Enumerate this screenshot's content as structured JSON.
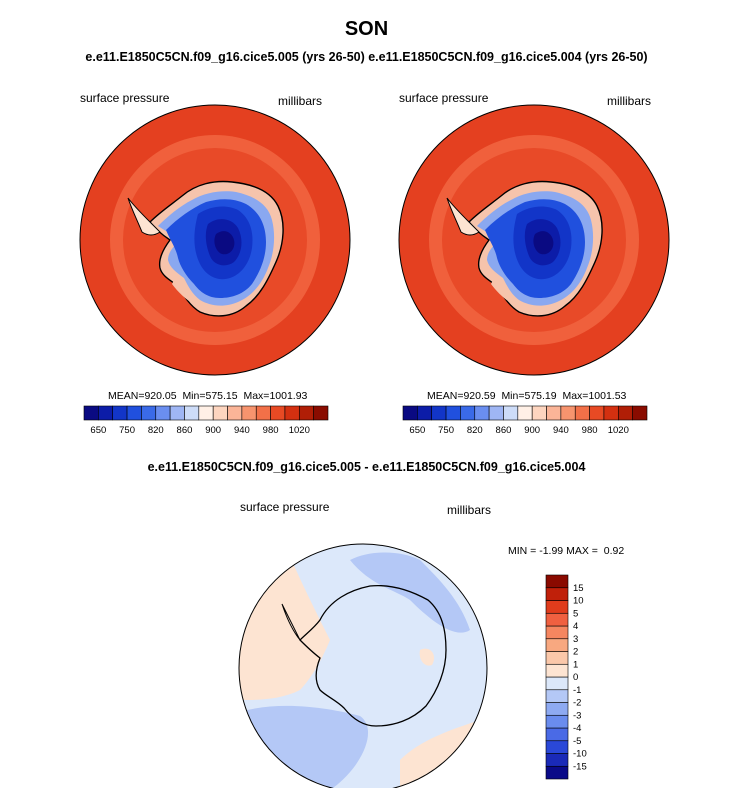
{
  "title": "SON",
  "subtitle_top": "e.e11.E1850C5CN.f09_g16.cice5.005 (yrs 26-50) e.e11.E1850C5CN.f09_g16.cice5.004 (yrs 26-50)",
  "diff_title": "e.e11.E1850C5CN.f09_g16.cice5.005 - e.e11.E1850C5CN.f09_g16.cice5.004",
  "panels": [
    {
      "variable": "surface pressure",
      "units": "millibars",
      "mean": "920.05",
      "min": "575.15",
      "max": "1001.93"
    },
    {
      "variable": "surface pressure",
      "units": "millibars",
      "mean": "920.59",
      "min": "575.19",
      "max": "1001.53"
    }
  ],
  "diff_panel": {
    "variable": "surface pressure",
    "units": "millibars",
    "min": "-1.99",
    "max": "0.92"
  },
  "labels": {
    "mean": "MEAN=",
    "min": "Min=",
    "max": "Max=",
    "dmin": "MIN =",
    "dmax": "MAX ="
  },
  "colorbar_main": {
    "colors": [
      "#0a0a82",
      "#0c1ca8",
      "#1235c8",
      "#2050de",
      "#3a6ae8",
      "#6a8ef0",
      "#9fb6f4",
      "#cddcf8",
      "#fff0e6",
      "#fdd5bf",
      "#fbb598",
      "#f7946e",
      "#f27048",
      "#e84a24",
      "#d43010",
      "#b01e06",
      "#8a0c00"
    ],
    "ticks": [
      "650",
      "750",
      "820",
      "860",
      "900",
      "940",
      "980",
      "1020"
    ]
  },
  "colorbar_diff": {
    "colors": [
      "#0a0a88",
      "#1a2ab8",
      "#2a48d8",
      "#4a6ae6",
      "#6a8cee",
      "#8eaaf2",
      "#b4c8f6",
      "#dce8fa",
      "#fde4d2",
      "#fbc8aa",
      "#f8a880",
      "#f58660",
      "#f06040",
      "#e03c1c",
      "#c0200a",
      "#8a0a00"
    ],
    "ticks": [
      "15",
      "10",
      "5",
      "4",
      "3",
      "2",
      "1",
      "0",
      "-1",
      "-2",
      "-3",
      "-4",
      "-5",
      "-10",
      "-15"
    ]
  }
}
